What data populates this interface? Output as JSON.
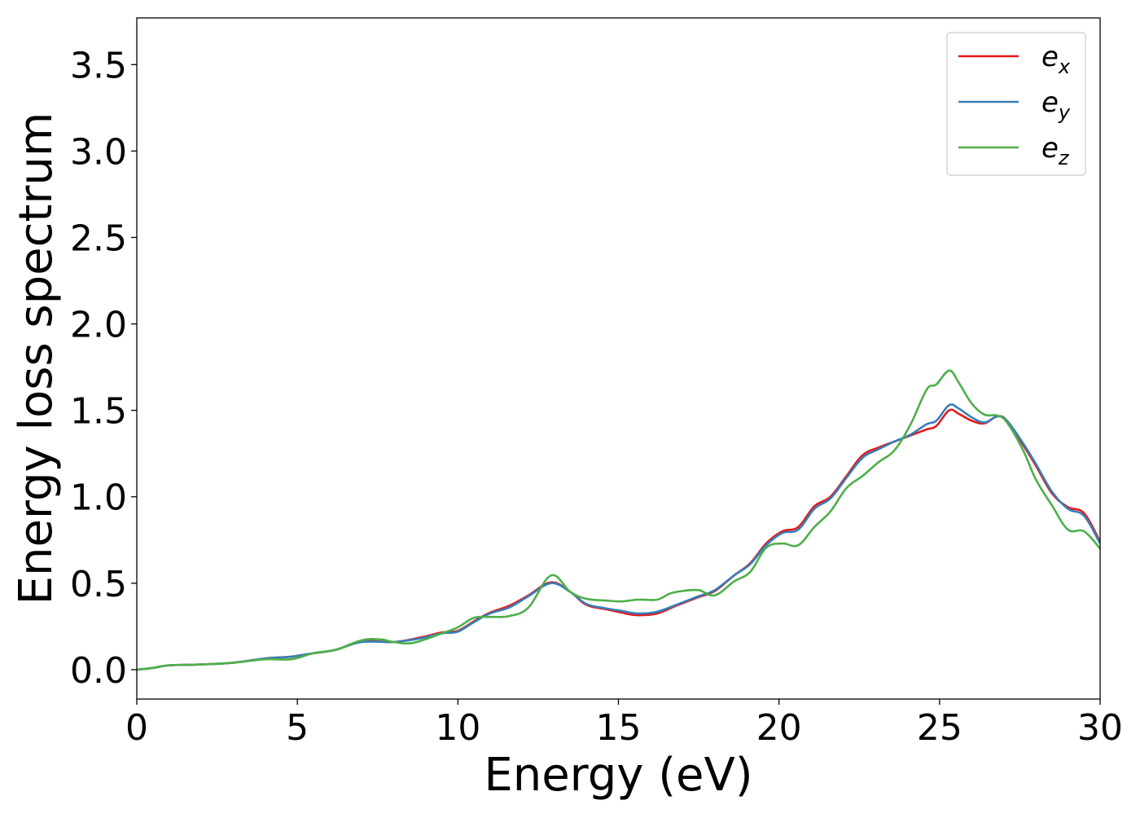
{
  "chart_data": {
    "type": "line",
    "title": "",
    "xlabel": "Energy (eV)",
    "ylabel": "Energy loss spectrum",
    "xlim": [
      0,
      30
    ],
    "ylim": [
      -0.17,
      3.77
    ],
    "xticks": [
      0,
      5,
      10,
      15,
      20,
      25,
      30
    ],
    "xtick_labels": [
      "0",
      "5",
      "10",
      "15",
      "20",
      "25",
      "30"
    ],
    "yticks": [
      0.0,
      0.5,
      1.0,
      1.5,
      2.0,
      2.5,
      3.0,
      3.5
    ],
    "ytick_labels": [
      "0.0",
      "0.5",
      "1.0",
      "1.5",
      "2.0",
      "2.5",
      "3.0",
      "3.5"
    ],
    "grid": false,
    "legend": "top-right",
    "series": [
      {
        "name": "e",
        "subscript": "x",
        "color": "#e41a1c",
        "x": [
          0,
          0.5,
          1,
          2,
          3,
          4,
          4.8,
          5.5,
          6.2,
          7,
          8,
          8.8,
          9.5,
          10,
          10.5,
          11,
          11.6,
          12.2,
          12.9,
          13.5,
          14,
          14.6,
          15.1,
          15.6,
          16.2,
          16.8,
          17.5,
          18,
          18.6,
          19.1,
          19.6,
          20.1,
          20.6,
          21.1,
          21.6,
          22.1,
          22.6,
          23.1,
          23.6,
          24.1,
          24.6,
          24.9,
          25.3,
          25.6,
          26,
          26.4,
          26.8,
          27.1,
          27.6,
          28,
          28.5,
          29,
          29.5,
          30
        ],
        "values": [
          0.0,
          0.01,
          0.025,
          0.03,
          0.04,
          0.065,
          0.075,
          0.095,
          0.115,
          0.165,
          0.16,
          0.185,
          0.215,
          0.225,
          0.28,
          0.33,
          0.37,
          0.43,
          0.505,
          0.45,
          0.375,
          0.35,
          0.33,
          0.315,
          0.325,
          0.37,
          0.42,
          0.455,
          0.545,
          0.615,
          0.73,
          0.8,
          0.825,
          0.945,
          1.0,
          1.12,
          1.24,
          1.285,
          1.32,
          1.355,
          1.39,
          1.41,
          1.5,
          1.48,
          1.44,
          1.425,
          1.465,
          1.44,
          1.3,
          1.18,
          1.02,
          0.94,
          0.905,
          0.74
        ]
      },
      {
        "name": "e",
        "subscript": "y",
        "color": "#377eb8",
        "x": [
          0,
          0.5,
          1,
          2,
          3,
          4,
          4.8,
          5.5,
          6.2,
          7,
          8,
          8.8,
          9.5,
          10,
          10.5,
          11,
          11.6,
          12.2,
          12.9,
          13.5,
          14,
          14.6,
          15.1,
          15.6,
          16.2,
          16.8,
          17.5,
          18,
          18.6,
          19.1,
          19.6,
          20.1,
          20.6,
          21.1,
          21.6,
          22.1,
          22.6,
          23.1,
          23.6,
          24.1,
          24.6,
          24.9,
          25.3,
          25.6,
          26,
          26.4,
          26.8,
          27.1,
          27.6,
          28,
          28.5,
          29,
          29.5,
          30
        ],
        "values": [
          0.0,
          0.01,
          0.025,
          0.03,
          0.04,
          0.065,
          0.075,
          0.095,
          0.115,
          0.16,
          0.16,
          0.18,
          0.21,
          0.22,
          0.275,
          0.325,
          0.36,
          0.425,
          0.5,
          0.45,
          0.38,
          0.355,
          0.34,
          0.325,
          0.335,
          0.375,
          0.425,
          0.46,
          0.545,
          0.61,
          0.72,
          0.79,
          0.81,
          0.93,
          0.99,
          1.11,
          1.225,
          1.275,
          1.32,
          1.36,
          1.42,
          1.44,
          1.53,
          1.51,
          1.46,
          1.43,
          1.465,
          1.44,
          1.31,
          1.19,
          1.03,
          0.93,
          0.89,
          0.73
        ]
      },
      {
        "name": "e",
        "subscript": "z",
        "color": "#4daf4a",
        "x": [
          0,
          0.5,
          1,
          2,
          3,
          4,
          4.8,
          5.5,
          6.2,
          7,
          7.6,
          8,
          8.6,
          9.5,
          10,
          10.5,
          11,
          11.6,
          12.2,
          12.9,
          13.5,
          14,
          14.6,
          15.1,
          15.6,
          16.2,
          16.6,
          17,
          17.5,
          18,
          18.6,
          19.1,
          19.6,
          20.1,
          20.6,
          21.1,
          21.6,
          22.1,
          22.6,
          23.1,
          23.6,
          24.1,
          24.6,
          24.9,
          25.3,
          25.6,
          26,
          26.4,
          26.8,
          27.1,
          27.6,
          28,
          28.5,
          29,
          29.5,
          30
        ],
        "values": [
          0.0,
          0.01,
          0.025,
          0.03,
          0.04,
          0.06,
          0.06,
          0.095,
          0.115,
          0.17,
          0.175,
          0.16,
          0.155,
          0.21,
          0.245,
          0.3,
          0.305,
          0.31,
          0.36,
          0.545,
          0.45,
          0.41,
          0.4,
          0.395,
          0.405,
          0.405,
          0.44,
          0.455,
          0.46,
          0.43,
          0.51,
          0.565,
          0.705,
          0.73,
          0.72,
          0.825,
          0.915,
          1.05,
          1.12,
          1.2,
          1.27,
          1.42,
          1.62,
          1.65,
          1.73,
          1.66,
          1.54,
          1.475,
          1.47,
          1.43,
          1.27,
          1.1,
          0.95,
          0.81,
          0.8,
          0.7
        ]
      }
    ]
  }
}
